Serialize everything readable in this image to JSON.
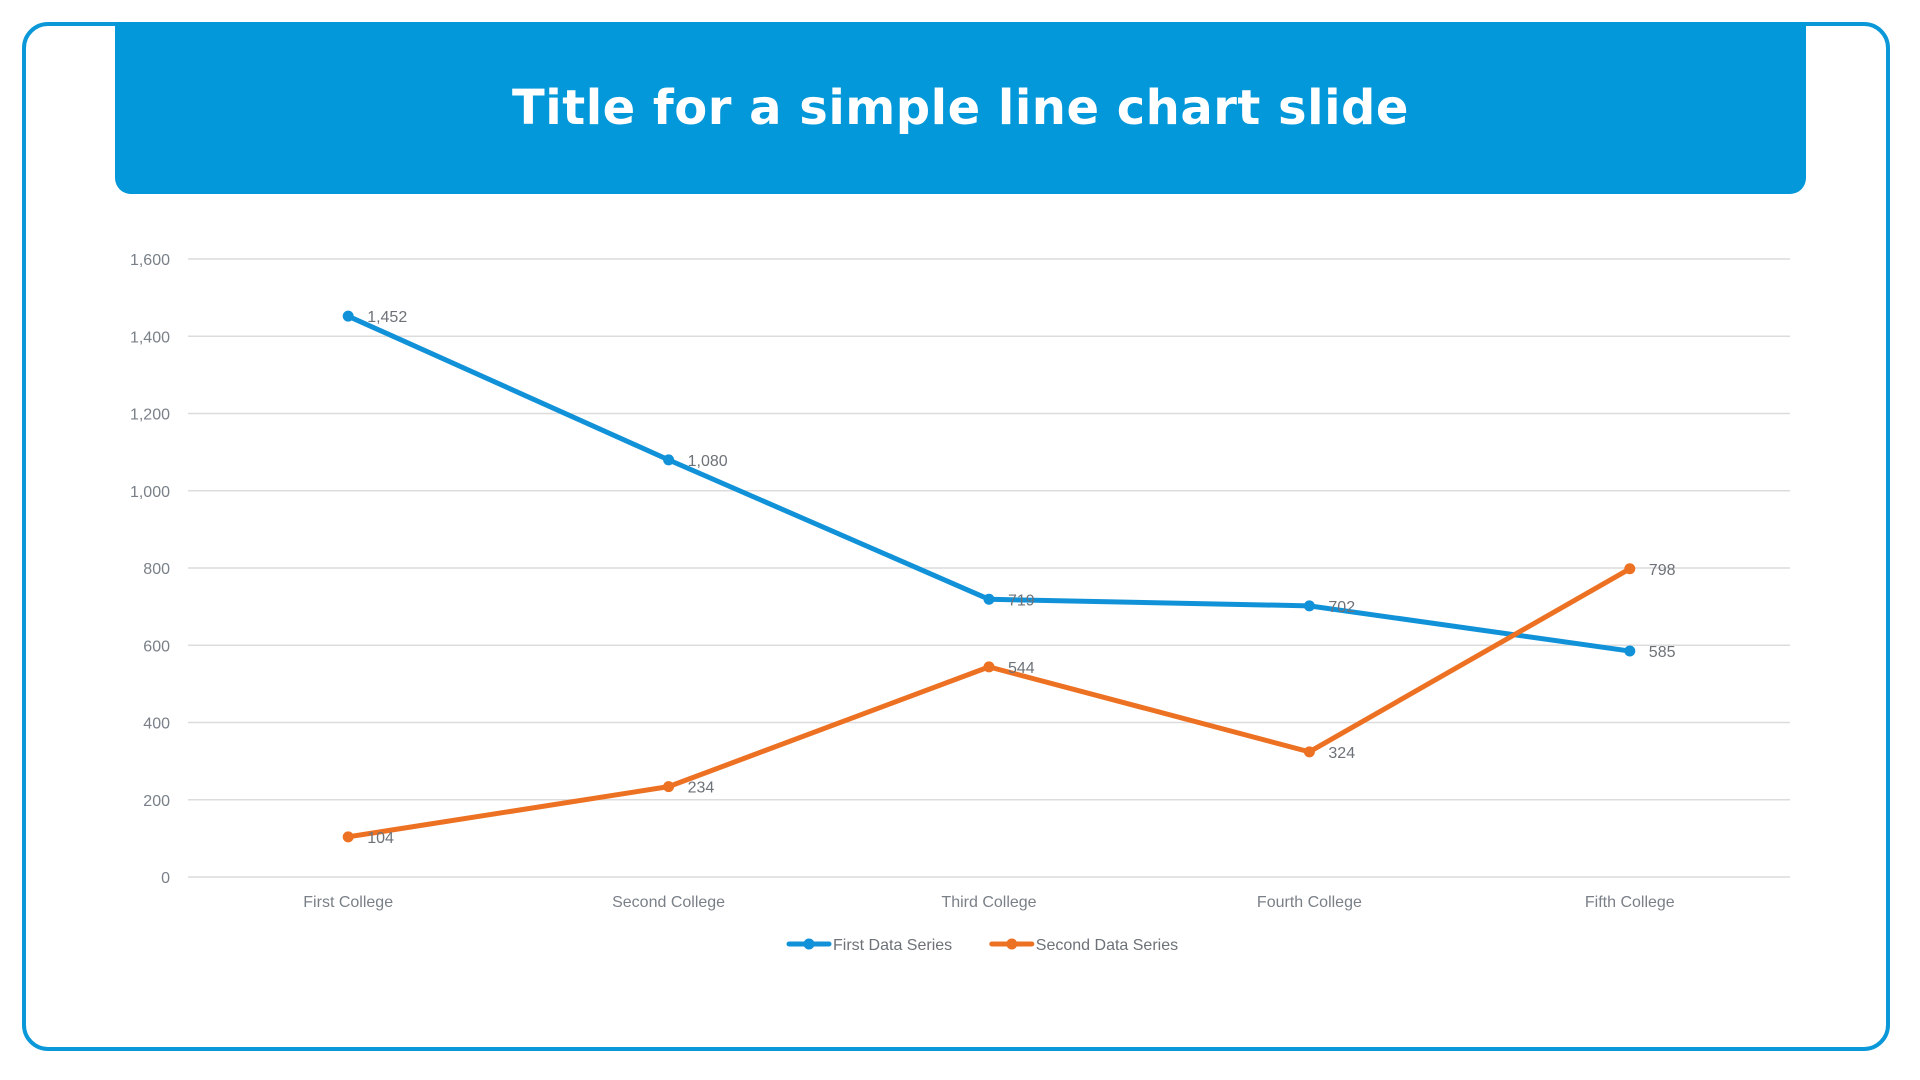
{
  "title": "Title for a simple line chart slide",
  "colors": {
    "frame": "#0a98d8",
    "banner": "#0398da",
    "grid": "#dcdcdc"
  },
  "chart_data": {
    "type": "line",
    "categories": [
      "First College",
      "Second College",
      "Third College",
      "Fourth College",
      "Fifth College"
    ],
    "ylim": [
      0,
      1600
    ],
    "yticks": [
      0,
      200,
      400,
      600,
      800,
      1000,
      1200,
      1400,
      1600
    ],
    "ytick_labels": [
      "0",
      "200",
      "400",
      "600",
      "800",
      "1,000",
      "1,200",
      "1,400",
      "1,600"
    ],
    "grid": true,
    "legend": "bottom",
    "series": [
      {
        "name": "First Data Series",
        "color": "#1192d8",
        "values": [
          1452,
          1080,
          719,
          702,
          585
        ],
        "labels": [
          "1,452",
          "1,080",
          "719",
          "702",
          "585"
        ]
      },
      {
        "name": "Second Data Series",
        "color": "#ed7122",
        "values": [
          104,
          234,
          544,
          324,
          798
        ],
        "labels": [
          "104",
          "234",
          "544",
          "324",
          "798"
        ]
      }
    ]
  }
}
